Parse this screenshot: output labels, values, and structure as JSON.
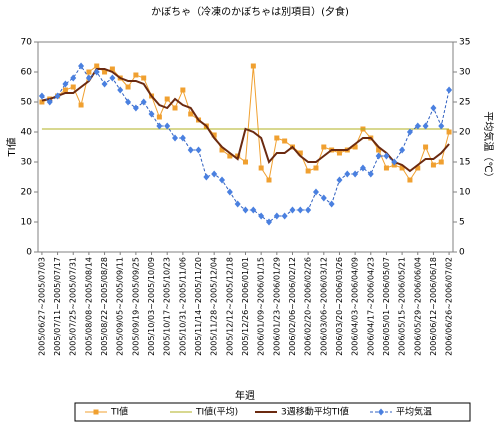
{
  "chart_data": {
    "type": "line",
    "title": "かぼちゃ（冷凍のかぼちゃは別項目）(夕食)",
    "xlabel": "年週",
    "ylabel": "TI値",
    "y2label": "平均気温（℃）",
    "categories": [
      "2005/06/27~2005/07/03",
      null,
      "2005/07/11~2005/07/17",
      null,
      "2005/07/25~2005/07/31",
      null,
      "2005/08/08~2005/08/14",
      null,
      "2005/08/22~2005/08/28",
      null,
      "2005/09/05~2005/09/11",
      null,
      "2005/09/19~2005/09/25",
      null,
      "2005/10/03~2005/10/09",
      null,
      "2005/10/17~2005/10/23",
      null,
      "2005/10/31~2005/11/06",
      null,
      "2005/11/14~2005/11/20",
      null,
      "2005/11/28~2005/12/04",
      null,
      "2005/12/12~2005/12/18",
      null,
      "2005/12/26~2006/01/01",
      null,
      "2006/01/09~2006/01/15",
      null,
      "2006/01/23~2006/01/29",
      null,
      "2006/02/06~2006/02/12",
      null,
      "2006/02/20~2006/02/26",
      null,
      "2006/03/06~2006/03/12",
      null,
      "2006/03/20~2006/03/26",
      null,
      "2006/04/03~2006/04/09",
      null,
      "2006/04/17~2006/04/23",
      null,
      "2006/05/01~2006/05/07",
      null,
      "2006/05/15~2006/05/21",
      null,
      "2006/05/29~2006/06/04",
      null,
      "2006/06/12~2006/06/18",
      null,
      "2006/06/26~2006/07/02"
    ],
    "series": [
      {
        "name": "TI値",
        "color": "#f0a030",
        "marker": "square",
        "values": [
          50,
          51,
          52,
          54,
          55,
          49,
          60,
          62,
          60,
          61,
          58,
          55,
          59,
          58,
          52,
          45,
          51,
          48,
          54,
          46,
          44,
          42,
          39,
          34,
          32,
          32,
          30,
          62,
          28,
          24,
          38,
          37,
          35,
          33,
          27,
          28,
          35,
          34,
          33,
          34,
          35,
          41,
          38,
          34,
          28,
          29,
          28,
          24,
          28,
          35,
          29,
          30,
          40
        ]
      },
      {
        "name": "TI値(平均)",
        "color": "#b0b020",
        "values": [
          41,
          41,
          41,
          41,
          41,
          41,
          41,
          41,
          41,
          41,
          41,
          41,
          41,
          41,
          41,
          41,
          41,
          41,
          41,
          41,
          41,
          41,
          41,
          41,
          41,
          41,
          41,
          41,
          41,
          41,
          41,
          41,
          41,
          41,
          41,
          41,
          41,
          41,
          41,
          41,
          41,
          41,
          41,
          41,
          41,
          41,
          41,
          41,
          41,
          41,
          41,
          41,
          41
        ]
      },
      {
        "name": "3週移動平均TI値",
        "color": "#6b2a10",
        "values": [
          50.5,
          51,
          52,
          53,
          53,
          55,
          57,
          61,
          61,
          60,
          58,
          57,
          57,
          56,
          52,
          49,
          48,
          51,
          49,
          48,
          44,
          42,
          38,
          35,
          33,
          31,
          41,
          40,
          38,
          30,
          33,
          33,
          35,
          32,
          30,
          30,
          32,
          34,
          34,
          34,
          36,
          38,
          38,
          35,
          33,
          30,
          29,
          27,
          29,
          31,
          31,
          33,
          36
        ]
      },
      {
        "name": "平均気温",
        "color": "#3060c0",
        "marker": "diamond",
        "axis": "y2",
        "values": [
          26,
          25,
          26,
          28,
          29,
          31,
          29,
          30,
          28,
          29,
          27,
          25,
          24,
          25,
          23,
          21,
          21,
          19,
          19,
          17,
          17,
          12.5,
          13,
          12,
          10,
          8,
          7,
          7,
          6,
          5,
          6,
          6,
          7,
          7,
          7,
          10,
          9,
          8,
          12,
          13,
          13,
          14,
          13,
          16,
          16,
          15,
          17,
          20,
          21,
          21,
          24,
          21,
          27
        ]
      }
    ],
    "ylim": [
      0,
      70
    ],
    "yticks": [
      0,
      10,
      20,
      30,
      40,
      50,
      60,
      70
    ],
    "y2lim": [
      0,
      35
    ],
    "y2ticks": [
      0,
      5,
      10,
      15,
      20,
      25,
      30,
      35
    ],
    "legend": "bottom"
  }
}
